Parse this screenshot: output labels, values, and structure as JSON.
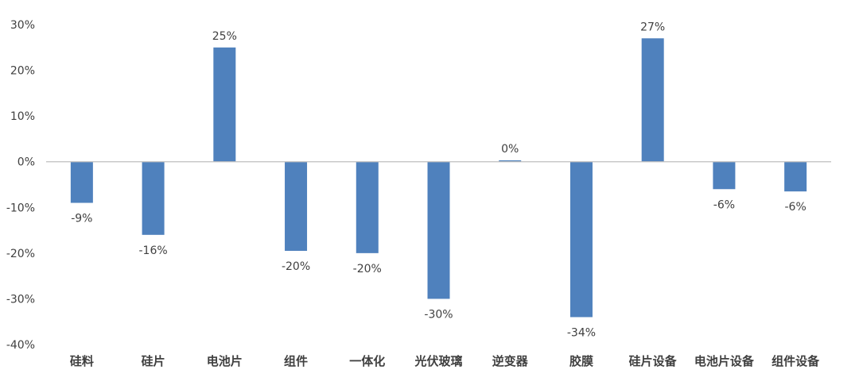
{
  "chart_data": {
    "type": "bar",
    "categories": [
      "硅料",
      "硅片",
      "电池片",
      "组件",
      "一体化",
      "光伏玻璃",
      "逆变器",
      "胶膜",
      "硅片设备",
      "电池片设备",
      "组件设备"
    ],
    "values": [
      -9,
      -16,
      25,
      -20,
      -20,
      -30,
      0,
      -34,
      27,
      -6,
      -6
    ],
    "plotted_values": [
      -9,
      -16,
      25,
      -19.5,
      -20,
      -30,
      0.3,
      -34,
      27,
      -6,
      -6.5
    ],
    "data_labels": [
      "-9%",
      "-16%",
      "25%",
      "-20%",
      "-20%",
      "-30%",
      "0%",
      "-34%",
      "27%",
      "-6%",
      "-6%"
    ],
    "yticks": [
      30,
      20,
      10,
      0,
      -10,
      -20,
      -30,
      -40
    ],
    "ytick_labels": [
      "30%",
      "20%",
      "10%",
      "0%",
      "-10%",
      "-20%",
      "-30%",
      "-40%"
    ],
    "ylim": [
      -40,
      30
    ],
    "title": "",
    "xlabel": "",
    "ylabel": "",
    "grid": false,
    "legend": "none",
    "bar_color": "#4f81bd",
    "axis_color": "#bfbfbf"
  }
}
